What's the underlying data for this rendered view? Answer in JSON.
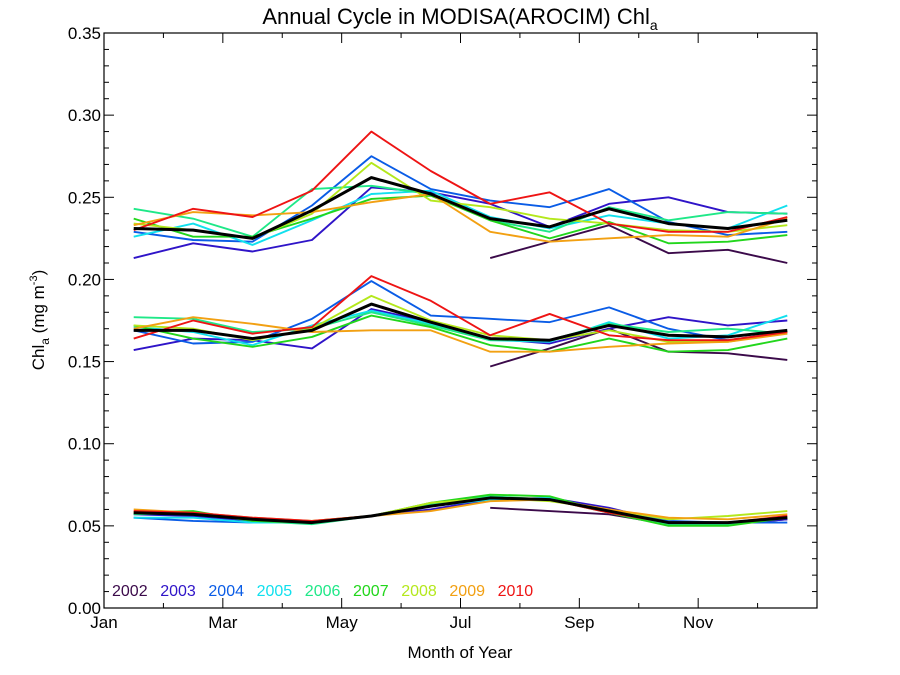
{
  "chart_data": {
    "type": "line",
    "title": "Annual Cycle in MODISA(AROCIM) Chl",
    "title_subscript": "a",
    "xlabel": "Month of Year",
    "ylabel": {
      "main": "Chl",
      "sub": "a",
      "unit_start": " (mg m",
      "unit_sup": "-3",
      "unit_end": ")"
    },
    "x_range": [
      0,
      12
    ],
    "ylim": [
      0.0,
      0.35
    ],
    "x_tick_labels": [
      {
        "x": 0,
        "label": "Jan"
      },
      {
        "x": 2,
        "label": "Mar"
      },
      {
        "x": 4,
        "label": "May"
      },
      {
        "x": 6,
        "label": "Jul"
      },
      {
        "x": 8,
        "label": "Sep"
      },
      {
        "x": 10,
        "label": "Nov"
      }
    ],
    "y_ticks": [
      0.0,
      0.05,
      0.1,
      0.15,
      0.2,
      0.25,
      0.3,
      0.35
    ],
    "y_tick_labels": [
      "0.00",
      "0.05",
      "0.10",
      "0.15",
      "0.20",
      "0.25",
      "0.30",
      "0.35"
    ],
    "grid": false,
    "legend_position": "bottom-left",
    "x_month_centers": [
      0.5,
      1.5,
      2.5,
      3.5,
      4.5,
      5.5,
      6.5,
      7.5,
      8.5,
      9.5,
      10.5,
      11.5
    ],
    "series": [
      {
        "name": "2002",
        "color": "#3b0a4a",
        "upper": [
          null,
          null,
          null,
          null,
          null,
          null,
          0.213,
          0.223,
          0.233,
          0.216,
          0.218,
          0.21
        ],
        "middle": [
          null,
          null,
          null,
          null,
          null,
          null,
          0.147,
          0.158,
          0.17,
          0.156,
          0.155,
          0.151
        ],
        "lower": [
          null,
          null,
          null,
          null,
          null,
          null,
          0.061,
          0.059,
          0.057,
          0.051,
          0.051,
          0.054
        ]
      },
      {
        "name": "2003",
        "color": "#2f14c8",
        "upper": [
          0.213,
          0.222,
          0.217,
          0.224,
          0.256,
          0.253,
          0.246,
          0.232,
          0.246,
          0.25,
          0.241,
          0.24
        ],
        "middle": [
          0.157,
          0.164,
          0.163,
          0.158,
          0.182,
          0.174,
          0.164,
          0.161,
          0.17,
          0.177,
          0.172,
          0.175
        ],
        "lower": [
          0.057,
          0.056,
          0.053,
          0.052,
          0.056,
          0.06,
          0.066,
          0.067,
          0.061,
          0.052,
          0.051,
          0.054
        ]
      },
      {
        "name": "2004",
        "color": "#0a5ce6",
        "upper": [
          0.229,
          0.224,
          0.223,
          0.245,
          0.275,
          0.255,
          0.248,
          0.244,
          0.255,
          0.235,
          0.227,
          0.229
        ],
        "middle": [
          0.169,
          0.161,
          0.162,
          0.176,
          0.199,
          0.178,
          0.176,
          0.174,
          0.183,
          0.17,
          0.163,
          0.168
        ],
        "lower": [
          0.055,
          0.053,
          0.052,
          0.052,
          0.056,
          0.062,
          0.066,
          0.066,
          0.06,
          0.053,
          0.052,
          0.052
        ]
      },
      {
        "name": "2005",
        "color": "#11e0ee",
        "upper": [
          0.226,
          0.234,
          0.221,
          0.236,
          0.252,
          0.254,
          0.238,
          0.231,
          0.239,
          0.234,
          0.231,
          0.245
        ],
        "middle": [
          0.171,
          0.168,
          0.16,
          0.172,
          0.181,
          0.173,
          0.163,
          0.162,
          0.174,
          0.164,
          0.166,
          0.178
        ],
        "lower": [
          0.055,
          0.055,
          0.052,
          0.052,
          0.056,
          0.062,
          0.066,
          0.067,
          0.059,
          0.052,
          0.052,
          0.055
        ]
      },
      {
        "name": "2006",
        "color": "#1fe888",
        "upper": [
          0.243,
          0.237,
          0.226,
          0.255,
          0.257,
          0.252,
          0.236,
          0.229,
          0.244,
          0.236,
          0.241,
          0.24
        ],
        "middle": [
          0.177,
          0.176,
          0.168,
          0.17,
          0.18,
          0.172,
          0.163,
          0.163,
          0.173,
          0.168,
          0.17,
          0.167
        ],
        "lower": [
          0.057,
          0.058,
          0.053,
          0.051,
          0.056,
          0.063,
          0.068,
          0.066,
          0.058,
          0.051,
          0.051,
          0.055
        ]
      },
      {
        "name": "2007",
        "color": "#22d61c",
        "upper": [
          0.237,
          0.226,
          0.226,
          0.237,
          0.249,
          0.251,
          0.236,
          0.225,
          0.235,
          0.222,
          0.223,
          0.227
        ],
        "middle": [
          0.172,
          0.164,
          0.159,
          0.165,
          0.178,
          0.171,
          0.16,
          0.156,
          0.164,
          0.156,
          0.157,
          0.164
        ],
        "lower": [
          0.058,
          0.059,
          0.053,
          0.052,
          0.056,
          0.064,
          0.069,
          0.068,
          0.058,
          0.05,
          0.05,
          0.055
        ]
      },
      {
        "name": "2008",
        "color": "#b4e81c",
        "upper": [
          0.234,
          0.23,
          0.225,
          0.24,
          0.271,
          0.248,
          0.244,
          0.237,
          0.234,
          0.23,
          0.229,
          0.233
        ],
        "middle": [
          0.172,
          0.17,
          0.163,
          0.17,
          0.19,
          0.175,
          0.166,
          0.163,
          0.169,
          0.162,
          0.162,
          0.168
        ],
        "lower": [
          0.058,
          0.057,
          0.054,
          0.053,
          0.056,
          0.064,
          0.067,
          0.065,
          0.06,
          0.054,
          0.056,
          0.059
        ]
      },
      {
        "name": "2009",
        "color": "#f2a012",
        "upper": [
          0.233,
          0.241,
          0.239,
          0.241,
          0.247,
          0.252,
          0.229,
          0.223,
          0.225,
          0.227,
          0.226,
          0.237
        ],
        "middle": [
          0.17,
          0.177,
          0.173,
          0.168,
          0.169,
          0.169,
          0.156,
          0.156,
          0.159,
          0.161,
          0.162,
          0.167
        ],
        "lower": [
          0.06,
          0.058,
          0.055,
          0.053,
          0.056,
          0.059,
          0.065,
          0.066,
          0.06,
          0.055,
          0.054,
          0.057
        ]
      },
      {
        "name": "2010",
        "color": "#ee1414",
        "upper": [
          0.23,
          0.243,
          0.238,
          0.254,
          0.29,
          0.266,
          0.246,
          0.253,
          0.234,
          0.229,
          0.229,
          0.238
        ],
        "middle": [
          0.164,
          0.175,
          0.167,
          0.171,
          0.202,
          0.187,
          0.166,
          0.179,
          0.166,
          0.163,
          0.163,
          0.168
        ],
        "lower": [
          0.059,
          0.058,
          0.055,
          0.053,
          0.056,
          0.062,
          0.067,
          0.066,
          0.058,
          0.052,
          0.052,
          0.056
        ]
      }
    ],
    "mean_series": {
      "color": "#000000",
      "upper": [
        0.231,
        0.23,
        0.225,
        0.242,
        0.262,
        0.252,
        0.237,
        0.232,
        0.243,
        0.234,
        0.231,
        0.236
      ],
      "middle": [
        0.169,
        0.169,
        0.164,
        0.169,
        0.185,
        0.174,
        0.164,
        0.163,
        0.172,
        0.166,
        0.165,
        0.169
      ],
      "lower": [
        0.058,
        0.057,
        0.054,
        0.052,
        0.056,
        0.062,
        0.067,
        0.066,
        0.059,
        0.052,
        0.052,
        0.055
      ]
    }
  }
}
